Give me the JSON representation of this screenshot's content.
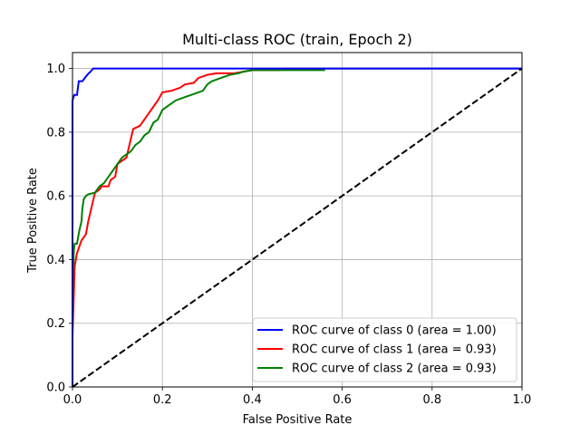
{
  "chart_data": {
    "type": "line",
    "title": "Multi-class ROC (train, Epoch 2)",
    "xlabel": "False Positive Rate",
    "ylabel": "True Positive Rate",
    "xlim": [
      0,
      1
    ],
    "ylim": [
      0,
      1.05
    ],
    "x_ticks": [
      0.0,
      0.2,
      0.4,
      0.6,
      0.8,
      1.0
    ],
    "y_ticks": [
      0.0,
      0.2,
      0.4,
      0.6,
      0.8,
      1.0
    ],
    "x_tick_labels": [
      "0.0",
      "0.2",
      "0.4",
      "0.6",
      "0.8",
      "1.0"
    ],
    "y_tick_labels": [
      "0.0",
      "0.2",
      "0.4",
      "0.6",
      "0.8",
      "1.0"
    ],
    "grid": true,
    "legend_position": "lower-right",
    "series": [
      {
        "name": "ROC curve of class 0 (area = 1.00)",
        "color": "#0000ff",
        "points": [
          [
            0,
            0
          ],
          [
            0,
            0.9
          ],
          [
            0.004,
            0.917
          ],
          [
            0.01,
            0.917
          ],
          [
            0.014,
            0.96
          ],
          [
            0.022,
            0.96
          ],
          [
            0.03,
            0.975
          ],
          [
            0.036,
            0.985
          ],
          [
            0.04,
            0.99
          ],
          [
            0.046,
            1.0
          ],
          [
            1.0,
            1.0
          ]
        ]
      },
      {
        "name": "ROC curve of class 1 (area = 0.93)",
        "color": "#ff0000",
        "points": [
          [
            0,
            0
          ],
          [
            0,
            0.16
          ],
          [
            0.005,
            0.38
          ],
          [
            0.01,
            0.42
          ],
          [
            0.015,
            0.44
          ],
          [
            0.02,
            0.46
          ],
          [
            0.03,
            0.48
          ],
          [
            0.035,
            0.52
          ],
          [
            0.04,
            0.55
          ],
          [
            0.045,
            0.58
          ],
          [
            0.05,
            0.61
          ],
          [
            0.06,
            0.62
          ],
          [
            0.065,
            0.63
          ],
          [
            0.08,
            0.63
          ],
          [
            0.085,
            0.65
          ],
          [
            0.095,
            0.66
          ],
          [
            0.1,
            0.7
          ],
          [
            0.11,
            0.71
          ],
          [
            0.12,
            0.72
          ],
          [
            0.13,
            0.78
          ],
          [
            0.135,
            0.81
          ],
          [
            0.15,
            0.82
          ],
          [
            0.16,
            0.84
          ],
          [
            0.17,
            0.86
          ],
          [
            0.18,
            0.88
          ],
          [
            0.19,
            0.9
          ],
          [
            0.2,
            0.925
          ],
          [
            0.22,
            0.93
          ],
          [
            0.24,
            0.94
          ],
          [
            0.25,
            0.95
          ],
          [
            0.27,
            0.955
          ],
          [
            0.28,
            0.97
          ],
          [
            0.3,
            0.98
          ],
          [
            0.32,
            0.985
          ],
          [
            0.36,
            0.985
          ],
          [
            0.38,
            0.99
          ],
          [
            0.4,
            0.995
          ],
          [
            0.46,
            0.995
          ],
          [
            0.47,
            1.0
          ],
          [
            0.56,
            1.0
          ]
        ]
      },
      {
        "name": "ROC curve of class 2 (area = 0.93)",
        "color": "#008000",
        "points": [
          [
            0,
            0
          ],
          [
            0,
            0.27
          ],
          [
            0.003,
            0.43
          ],
          [
            0.005,
            0.45
          ],
          [
            0.01,
            0.45
          ],
          [
            0.015,
            0.49
          ],
          [
            0.02,
            0.52
          ],
          [
            0.022,
            0.56
          ],
          [
            0.025,
            0.59
          ],
          [
            0.03,
            0.6
          ],
          [
            0.035,
            0.605
          ],
          [
            0.05,
            0.61
          ],
          [
            0.06,
            0.63
          ],
          [
            0.07,
            0.64
          ],
          [
            0.08,
            0.66
          ],
          [
            0.09,
            0.68
          ],
          [
            0.1,
            0.7
          ],
          [
            0.11,
            0.72
          ],
          [
            0.12,
            0.73
          ],
          [
            0.13,
            0.74
          ],
          [
            0.14,
            0.76
          ],
          [
            0.15,
            0.77
          ],
          [
            0.16,
            0.79
          ],
          [
            0.17,
            0.8
          ],
          [
            0.18,
            0.83
          ],
          [
            0.19,
            0.84
          ],
          [
            0.2,
            0.87
          ],
          [
            0.21,
            0.88
          ],
          [
            0.23,
            0.9
          ],
          [
            0.25,
            0.91
          ],
          [
            0.27,
            0.92
          ],
          [
            0.29,
            0.93
          ],
          [
            0.3,
            0.95
          ],
          [
            0.31,
            0.96
          ],
          [
            0.33,
            0.97
          ],
          [
            0.35,
            0.98
          ],
          [
            0.37,
            0.985
          ],
          [
            0.38,
            0.99
          ],
          [
            0.4,
            0.995
          ],
          [
            0.56,
            0.995
          ],
          [
            0.56,
            1.0
          ],
          [
            1.0,
            1.0
          ]
        ]
      },
      {
        "name": "",
        "color": "#000000",
        "dash": true,
        "points": [
          [
            0,
            0
          ],
          [
            1,
            1
          ]
        ]
      }
    ]
  }
}
